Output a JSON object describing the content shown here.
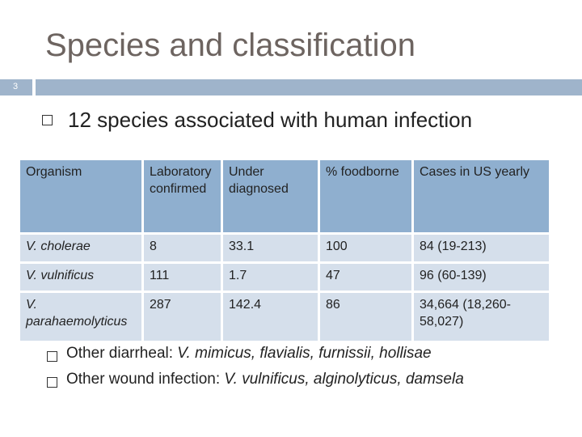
{
  "slide": {
    "title": "Species and classification",
    "number": "3",
    "main_bullet": "12 species associated with human infection"
  },
  "table": {
    "headers": [
      "Organism",
      "Laboratory confirmed",
      "Under diagnosed",
      "% foodborne",
      "Cases in US yearly"
    ],
    "rows": [
      {
        "organism": "V. cholerae",
        "lab": "8",
        "under": "33.1",
        "food": "100",
        "cases": "84 (19-213)"
      },
      {
        "organism": "V. vulnificus",
        "lab": "111",
        "under": "1.7",
        "food": "47",
        "cases": "96 (60-139)"
      },
      {
        "organism": "V. parahaemolyticus",
        "lab": "287",
        "under": "142.4",
        "food": "86",
        "cases": "34,664 (18,260-58,027)"
      }
    ]
  },
  "bullets": [
    {
      "label": "Other diarrheal: ",
      "species": "V. mimicus, flavialis, furnissii, hollisae"
    },
    {
      "label": "Other wound infection: ",
      "species": "V. vulnificus, alginolyticus, damsela"
    }
  ],
  "colors": {
    "header_row": "#8fafcf",
    "body_row": "#d5dfeb",
    "accent_bar": "#9fb4cb",
    "title": "#6d6460"
  }
}
